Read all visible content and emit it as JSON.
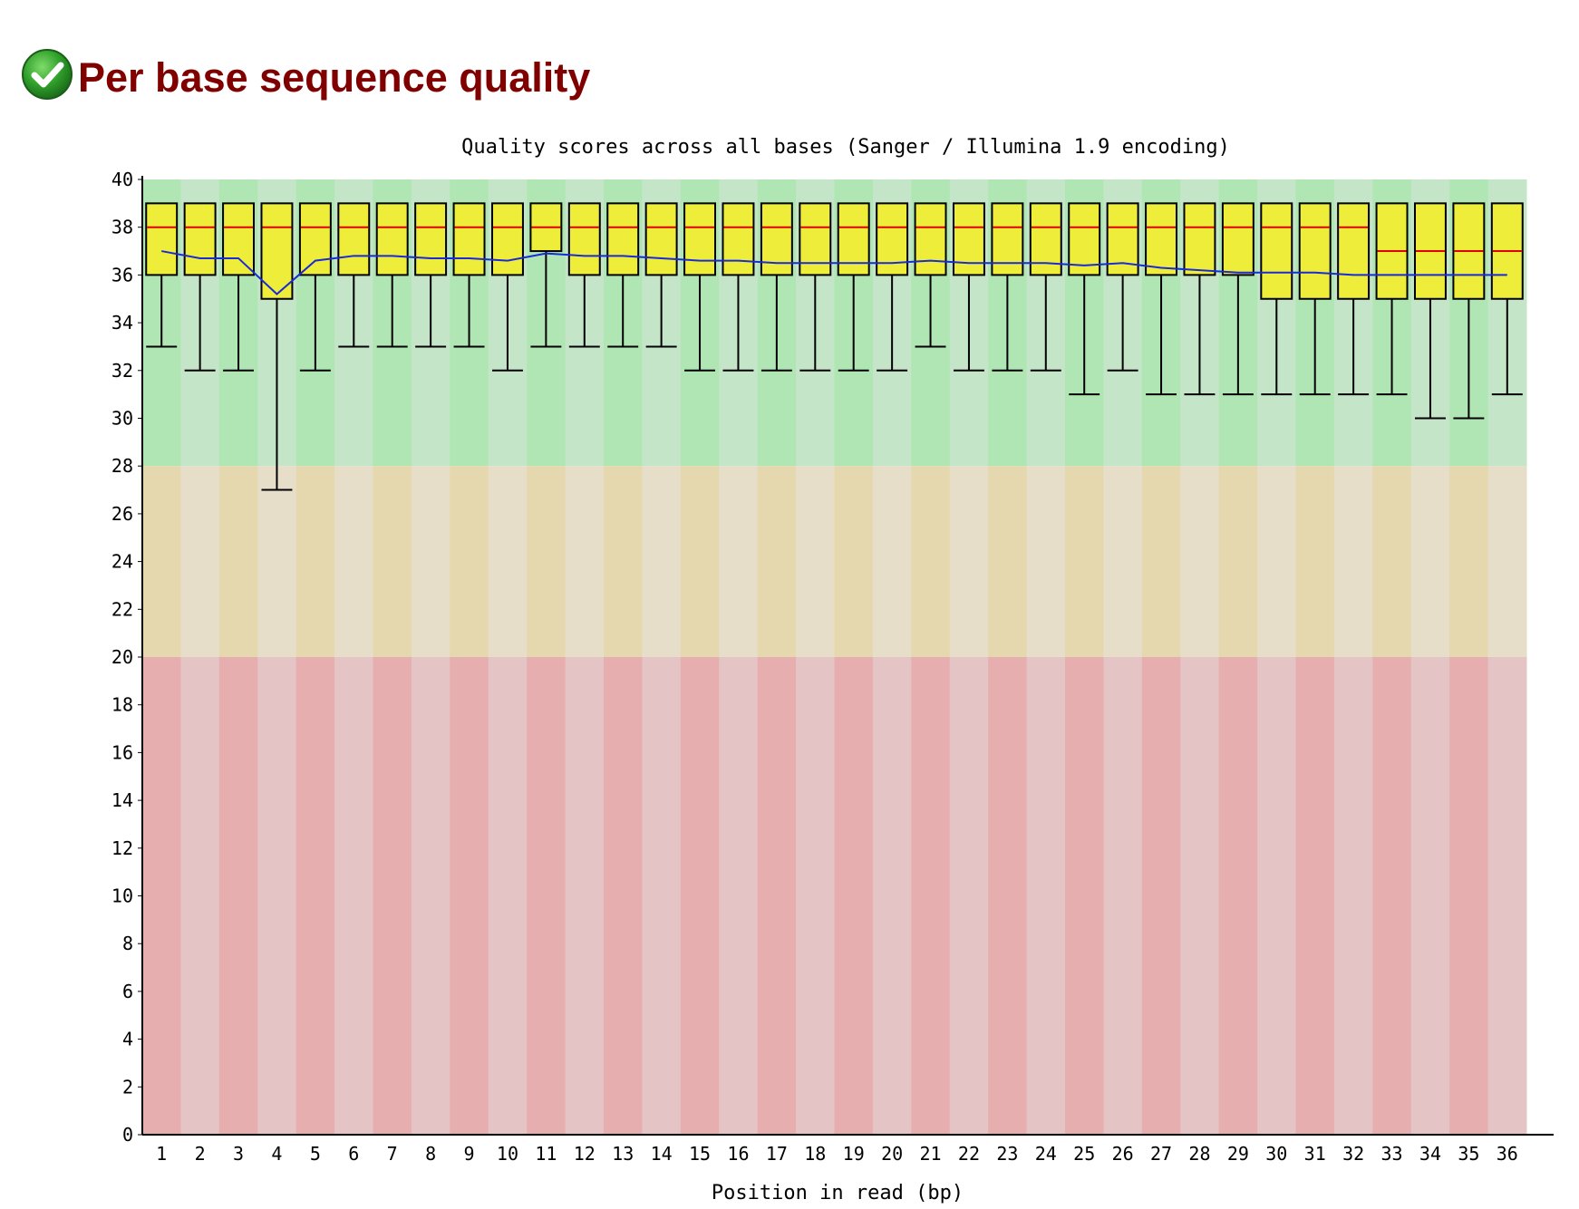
{
  "section": {
    "title": "Per base sequence quality",
    "status_icon": "check-pass-icon",
    "status_color": "#2e9e2e"
  },
  "chart_data": {
    "type": "box",
    "title": "Quality scores across all bases (Sanger / Illumina 1.9 encoding)",
    "xlabel": "Position in read (bp)",
    "ylabel": "",
    "ylim": [
      0,
      40
    ],
    "yticks": [
      0,
      2,
      4,
      6,
      8,
      10,
      12,
      14,
      16,
      18,
      20,
      22,
      24,
      26,
      28,
      30,
      32,
      34,
      36,
      38,
      40
    ],
    "categories": [
      "1",
      "2",
      "3",
      "4",
      "5",
      "6",
      "7",
      "8",
      "9",
      "10",
      "11",
      "12",
      "13",
      "14",
      "15",
      "16",
      "17",
      "18",
      "19",
      "20",
      "21",
      "22",
      "23",
      "24",
      "25",
      "26",
      "27",
      "28",
      "29",
      "30",
      "31",
      "32",
      "33",
      "34",
      "35",
      "36"
    ],
    "boxes": {
      "upper_quartile": [
        39,
        39,
        39,
        39,
        39,
        39,
        39,
        39,
        39,
        39,
        39,
        39,
        39,
        39,
        39,
        39,
        39,
        39,
        39,
        39,
        39,
        39,
        39,
        39,
        39,
        39,
        39,
        39,
        39,
        39,
        39,
        39,
        39,
        39,
        39,
        39
      ],
      "median": [
        38,
        38,
        38,
        38,
        38,
        38,
        38,
        38,
        38,
        38,
        38,
        38,
        38,
        38,
        38,
        38,
        38,
        38,
        38,
        38,
        38,
        38,
        38,
        38,
        38,
        38,
        38,
        38,
        38,
        38,
        38,
        38,
        37,
        37,
        37,
        37
      ],
      "lower_quartile": [
        36,
        36,
        36,
        35,
        36,
        36,
        36,
        36,
        36,
        36,
        37,
        36,
        36,
        36,
        36,
        36,
        36,
        36,
        36,
        36,
        36,
        36,
        36,
        36,
        36,
        36,
        36,
        36,
        36,
        35,
        35,
        35,
        35,
        35,
        35,
        35
      ],
      "lower_whisker": [
        33,
        32,
        32,
        27,
        32,
        33,
        33,
        33,
        33,
        32,
        33,
        33,
        33,
        33,
        32,
        32,
        32,
        32,
        32,
        32,
        33,
        32,
        32,
        32,
        31,
        32,
        31,
        31,
        31,
        31,
        31,
        31,
        31,
        30,
        30,
        31
      ]
    },
    "mean": [
      37.0,
      36.7,
      36.7,
      35.2,
      36.6,
      36.8,
      36.8,
      36.7,
      36.7,
      36.6,
      36.9,
      36.8,
      36.8,
      36.7,
      36.6,
      36.6,
      36.5,
      36.5,
      36.5,
      36.5,
      36.6,
      36.5,
      36.5,
      36.5,
      36.4,
      36.5,
      36.3,
      36.2,
      36.1,
      36.1,
      36.1,
      36.0,
      36.0,
      36.0,
      36.0,
      36.0
    ],
    "quality_zones": [
      {
        "name": "good",
        "range": [
          28,
          40
        ],
        "colors": [
          "#b0e6b3",
          "#c4e5c7"
        ]
      },
      {
        "name": "reasonable",
        "range": [
          20,
          28
        ],
        "colors": [
          "#e6d8ae",
          "#e6dec8"
        ]
      },
      {
        "name": "poor",
        "range": [
          0,
          20
        ],
        "colors": [
          "#e6aeaf",
          "#e5c4c6"
        ]
      }
    ],
    "colors": {
      "box_fill": "#eeee3a",
      "median_line": "#e00000",
      "mean_line": "#1a2ad6",
      "box_stroke": "#000000"
    },
    "grid": false,
    "legend": "none"
  }
}
